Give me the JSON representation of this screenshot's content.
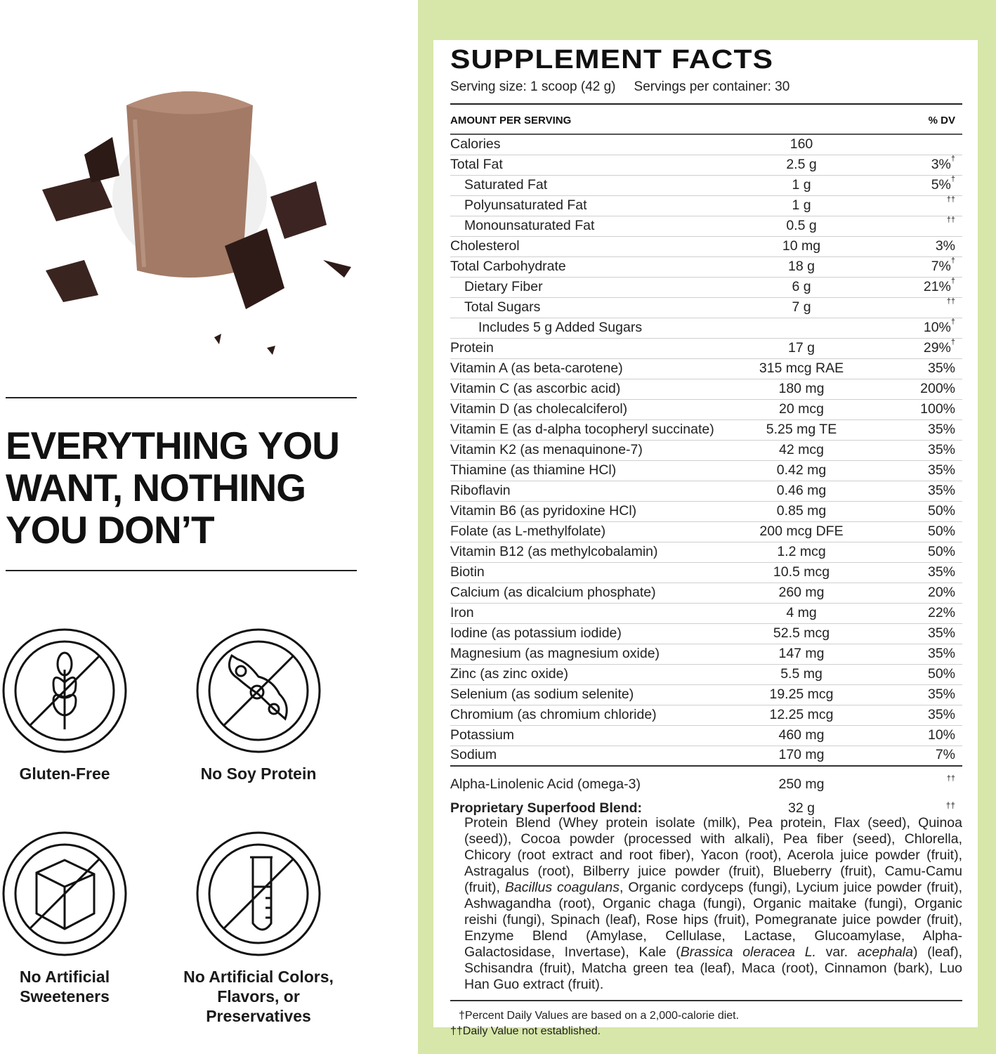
{
  "left": {
    "headline": [
      "EVERYTHING YOU",
      "WANT, NOTHING",
      "YOU DON’T"
    ],
    "badges": [
      {
        "icon": "no-gluten-wheat-icon",
        "label": [
          "Gluten-Free"
        ]
      },
      {
        "icon": "no-soy-bean-icon",
        "label": [
          "No Soy Protein"
        ]
      },
      {
        "icon": "no-sugar-cube-icon",
        "label": [
          "No Artificial",
          "Sweeteners"
        ]
      },
      {
        "icon": "no-test-tube-icon",
        "label": [
          "No Artificial Colors,",
          "Flavors, or Preservatives"
        ]
      }
    ]
  },
  "facts": {
    "title": "SUPPLEMENT FACTS",
    "serving_size": "Serving size: 1 scoop (42 g)",
    "servings_per_container": "Servings per container: 30",
    "header_amount": "AMOUNT PER SERVING",
    "header_dv": "% DV",
    "rows": [
      {
        "name": "Calories",
        "amount": "160",
        "dv": "",
        "mark": "",
        "indent": 0
      },
      {
        "name": "Total Fat",
        "amount": "2.5 g",
        "dv": "3%",
        "mark": "†",
        "indent": 0
      },
      {
        "name": "Saturated Fat",
        "amount": "1 g",
        "dv": "5%",
        "mark": "†",
        "indent": 1
      },
      {
        "name": "Polyunsaturated Fat",
        "amount": "1 g",
        "dv": "",
        "mark": "††",
        "indent": 1
      },
      {
        "name": "Monounsaturated Fat",
        "amount": "0.5 g",
        "dv": "",
        "mark": "††",
        "indent": 1
      },
      {
        "name": "Cholesterol",
        "amount": "10 mg",
        "dv": "3%",
        "mark": "",
        "indent": 0
      },
      {
        "name": "Total Carbohydrate",
        "amount": "18 g",
        "dv": "7%",
        "mark": "†",
        "indent": 0
      },
      {
        "name": "Dietary Fiber",
        "amount": "6 g",
        "dv": "21%",
        "mark": "†",
        "indent": 1
      },
      {
        "name": "Total Sugars",
        "amount": "7 g",
        "dv": "",
        "mark": "††",
        "indent": 1
      },
      {
        "name": "Includes 5 g Added Sugars",
        "amount": "",
        "dv": "10%",
        "mark": "†",
        "indent": 2
      },
      {
        "name": "Protein",
        "amount": "17 g",
        "dv": "29%",
        "mark": "†",
        "indent": 0
      },
      {
        "name": "Vitamin A (as beta-carotene)",
        "amount": "315 mcg RAE",
        "dv": "35%",
        "mark": "",
        "indent": 0
      },
      {
        "name": "Vitamin C (as ascorbic acid)",
        "amount": "180 mg",
        "dv": "200%",
        "mark": "",
        "indent": 0
      },
      {
        "name": "Vitamin D (as cholecalciferol)",
        "amount": "20 mcg",
        "dv": "100%",
        "mark": "",
        "indent": 0
      },
      {
        "name": "Vitamin E (as d-alpha tocopheryl succinate)",
        "amount": "5.25 mg TE",
        "dv": "35%",
        "mark": "",
        "indent": 0
      },
      {
        "name": "Vitamin K2 (as menaquinone-7)",
        "amount": "42 mcg",
        "dv": "35%",
        "mark": "",
        "indent": 0
      },
      {
        "name": "Thiamine (as thiamine HCl)",
        "amount": "0.42 mg",
        "dv": "35%",
        "mark": "",
        "indent": 0
      },
      {
        "name": "Riboflavin",
        "amount": "0.46 mg",
        "dv": "35%",
        "mark": "",
        "indent": 0
      },
      {
        "name": "Vitamin B6 (as pyridoxine HCl)",
        "amount": "0.85 mg",
        "dv": "50%",
        "mark": "",
        "indent": 0
      },
      {
        "name": "Folate (as L-methylfolate)",
        "amount": "200 mcg DFE",
        "dv": "50%",
        "mark": "",
        "indent": 0
      },
      {
        "name": "Vitamin B12 (as methylcobalamin)",
        "amount": "1.2 mcg",
        "dv": "50%",
        "mark": "",
        "indent": 0
      },
      {
        "name": "Biotin",
        "amount": "10.5 mcg",
        "dv": "35%",
        "mark": "",
        "indent": 0
      },
      {
        "name": "Calcium (as dicalcium phosphate)",
        "amount": "260 mg",
        "dv": "20%",
        "mark": "",
        "indent": 0
      },
      {
        "name": "Iron",
        "amount": "4 mg",
        "dv": "22%",
        "mark": "",
        "indent": 0
      },
      {
        "name": "Iodine (as potassium iodide)",
        "amount": "52.5 mcg",
        "dv": "35%",
        "mark": "",
        "indent": 0
      },
      {
        "name": "Magnesium (as magnesium oxide)",
        "amount": "147 mg",
        "dv": "35%",
        "mark": "",
        "indent": 0
      },
      {
        "name": "Zinc (as zinc oxide)",
        "amount": "5.5 mg",
        "dv": "50%",
        "mark": "",
        "indent": 0
      },
      {
        "name": "Selenium (as sodium selenite)",
        "amount": "19.25 mcg",
        "dv": "35%",
        "mark": "",
        "indent": 0
      },
      {
        "name": "Chromium (as chromium chloride)",
        "amount": "12.25 mcg",
        "dv": "35%",
        "mark": "",
        "indent": 0
      },
      {
        "name": "Potassium",
        "amount": "460 mg",
        "dv": "10%",
        "mark": "",
        "indent": 0
      },
      {
        "name": "Sodium",
        "amount": "170 mg",
        "dv": "7%",
        "mark": "",
        "indent": 0
      }
    ],
    "ala": {
      "name": "Alpha-Linolenic Acid (omega-3)",
      "amount": "250 mg",
      "mark": "††"
    },
    "blend": {
      "name": "Proprietary Superfood Blend:",
      "amount": "32 g",
      "mark": "††",
      "ingredients_html": "Protein Blend (Whey protein isolate (milk), Pea protein, Flax (seed), Quinoa (seed)), Cocoa powder (processed with alkali), Pea fiber (seed), Chlorella, Chicory (root extract and root fiber), Yacon (root), Acerola juice powder (fruit), Astragalus (root), Bilberry juice powder (fruit), Blueberry (fruit), Camu-Camu (fruit), <i>Bacillus coagulans</i>, Organic cordyceps (fungi), Lycium juice powder (fruit), Ashwagandha (root), Organic chaga (fungi), Organic maitake (fungi), Organic reishi (fungi), Spinach (leaf), Rose hips (fruit), Pomegranate juice powder (fruit), Enzyme Blend (Amylase, Cellulase, Lactase, Glucoamylase, Alpha-Galactosidase, Invertase), Kale (<i>Brassica oleracea L.</i> var. <i>acephala</i>) (leaf), Schisandra (fruit), Matcha green tea (leaf), Maca (root), Cinnamon (bark), Luo Han Guo extract (fruit)."
    },
    "footnotes": [
      "†Percent Daily Values are based on a 2,000-calorie diet.",
      "††Daily Value not established."
    ]
  },
  "colors": {
    "panel_green": "#d7e7a9",
    "shake_brown": "#a27a66",
    "chocolate": "#3a2420"
  }
}
